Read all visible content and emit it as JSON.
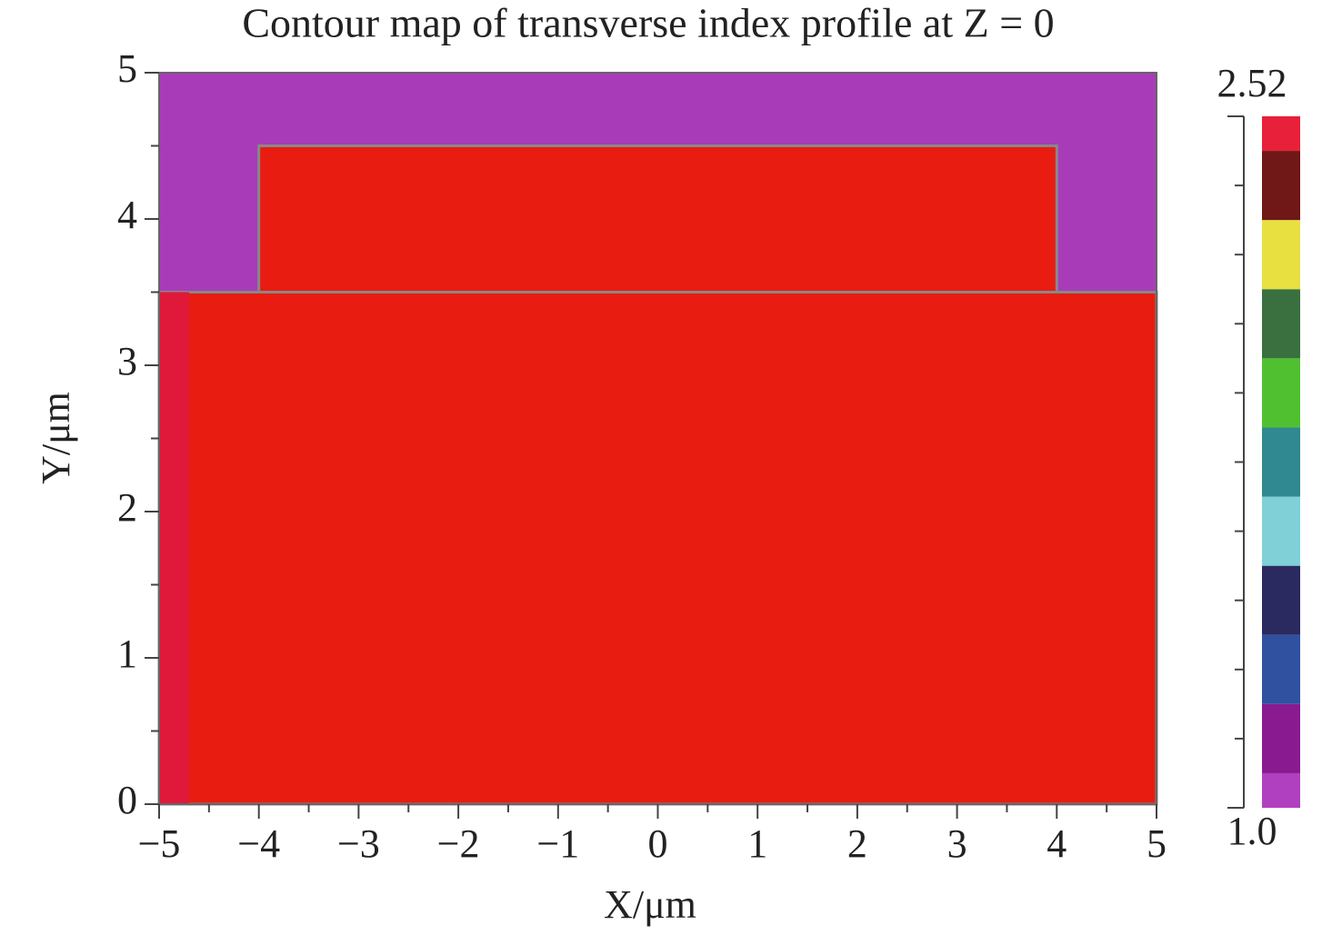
{
  "chart_data": {
    "type": "contour",
    "title": "Contour map of transverse index profile at Z = 0",
    "x_label": "X/μm",
    "y_label": "Y/μm",
    "xlim": [
      -5,
      5
    ],
    "ylim": [
      0,
      5
    ],
    "xticks": [
      {
        "value": -5,
        "label": "−5"
      },
      {
        "value": -4,
        "label": "−4"
      },
      {
        "value": -3,
        "label": "−3"
      },
      {
        "value": -2,
        "label": "−2"
      },
      {
        "value": -1,
        "label": "−1"
      },
      0,
      1,
      2,
      3,
      4,
      5
    ],
    "xminor": [
      -4.5,
      -3.5,
      -2.5,
      -1.5,
      -0.5,
      0.5,
      1.5,
      2.5,
      3.5,
      4.5
    ],
    "yticks": [
      0,
      1,
      2,
      3,
      4,
      5
    ],
    "yminor": [
      0.5,
      1.5,
      2.5,
      3.5,
      4.5
    ],
    "background": "#a83cb8",
    "regions": [
      {
        "x": [
          -5,
          5
        ],
        "y": [
          0,
          3.5
        ],
        "color": "#e81c10"
      },
      {
        "x": [
          -4,
          4
        ],
        "y": [
          3.5,
          4.5
        ],
        "color": "#e81c10"
      },
      {
        "x": [
          -5,
          -4.7
        ],
        "y": [
          0,
          3.5
        ],
        "color": "#e0183a"
      }
    ],
    "colorbar": {
      "lim": [
        1,
        2.52
      ],
      "ticks": [
        {
          "value": 1,
          "label": "1.0"
        },
        2.52
      ],
      "levels": [
        1,
        1.152,
        1.304,
        1.456,
        1.608,
        1.76,
        1.912,
        2.064,
        2.216,
        2.368,
        2.52
      ],
      "colors": [
        "#b040c0",
        "#8a1a90",
        "#3050a0",
        "#2a2a60",
        "#80d0d8",
        "#308890",
        "#50c030",
        "#3a7040",
        "#e8e040",
        "#701818",
        "#e8203a"
      ]
    }
  }
}
